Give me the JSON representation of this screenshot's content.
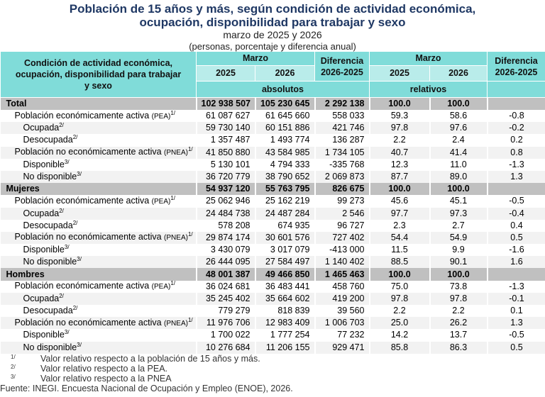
{
  "title": {
    "line1": "Población de 15 años y más, según condición de actividad económica,",
    "line2": "ocupación, disponibilidad para trabajar y sexo",
    "subtitle": "marzo de 2025 y 2026",
    "units": "(personas, porcentaje y diferencia anual)"
  },
  "header": {
    "label": "Condición de actividad económica, ocupación, disponibilidad para trabajar y sexo",
    "month": "Marzo",
    "y2025": "2025",
    "y2026": "2026",
    "diff": "Diferencia 2026-2025",
    "absolutos": "absolutos",
    "relativos": "relativos"
  },
  "rows": [
    {
      "type": "grp",
      "label": "Total",
      "v": [
        "102 938 507",
        "105 230 645",
        "2 292 138",
        "100.0",
        "100.0",
        ""
      ]
    },
    {
      "type": "l1",
      "label": "Población económicamente activa ",
      "abbr": "(PEA)",
      "sup": "1/",
      "v": [
        "61 087 627",
        "61 645 660",
        "558 033",
        "59.3",
        "58.6",
        "-0.8"
      ]
    },
    {
      "type": "l2",
      "label": "Ocupada",
      "sup": "2/",
      "v": [
        "59 730 140",
        "60 151 886",
        "421 746",
        "97.8",
        "97.6",
        "-0.2"
      ]
    },
    {
      "type": "l2",
      "label": "Desocupada",
      "sup": "2/",
      "v": [
        "1 357 487",
        "1 493 774",
        "136 287",
        "2.2",
        "2.4",
        "0.2"
      ]
    },
    {
      "type": "l1",
      "label": "Población no económicamente activa ",
      "abbr": "(PNEA)",
      "sup": "1/",
      "v": [
        "41 850 880",
        "43 584 985",
        "1 734 105",
        "40.7",
        "41.4",
        "0.8"
      ]
    },
    {
      "type": "l2",
      "label": "Disponible",
      "sup": "3/",
      "v": [
        "5 130 101",
        "4 794 333",
        "-335 768",
        "12.3",
        "11.0",
        "-1.3"
      ]
    },
    {
      "type": "l2",
      "label": "No disponible",
      "sup": "3/",
      "v": [
        "36 720 779",
        "38 790 652",
        "2 069 873",
        "87.7",
        "89.0",
        "1.3"
      ]
    },
    {
      "type": "grp",
      "label": "Mujeres",
      "v": [
        "54 937 120",
        "55 763 795",
        "826 675",
        "100.0",
        "100.0",
        ""
      ]
    },
    {
      "type": "l1",
      "label": "Población económicamente activa ",
      "abbr": "(PEA)",
      "sup": "1/",
      "v": [
        "25 062 946",
        "25 162 219",
        "99 273",
        "45.6",
        "45.1",
        "-0.5"
      ]
    },
    {
      "type": "l2",
      "label": "Ocupada",
      "sup": "2/",
      "v": [
        "24 484 738",
        "24 487 284",
        "2 546",
        "97.7",
        "97.3",
        "-0.4"
      ]
    },
    {
      "type": "l2",
      "label": "Desocupada",
      "sup": "2/",
      "v": [
        "578 208",
        "674 935",
        "96 727",
        "2.3",
        "2.7",
        "0.4"
      ]
    },
    {
      "type": "l1",
      "label": "Población no económicamente activa ",
      "abbr": "(PNEA)",
      "sup": "1/",
      "v": [
        "29 874 174",
        "30 601 576",
        "727 402",
        "54.4",
        "54.9",
        "0.5"
      ]
    },
    {
      "type": "l2",
      "label": "Disponible",
      "sup": "3/",
      "v": [
        "3 430 079",
        "3 017 079",
        "-413 000",
        "11.5",
        "9.9",
        "-1.6"
      ]
    },
    {
      "type": "l2",
      "label": "No disponible",
      "sup": "3/",
      "v": [
        "26 444 095",
        "27 584 497",
        "1 140 402",
        "88.5",
        "90.1",
        "1.6"
      ]
    },
    {
      "type": "grp",
      "label": "Hombres",
      "v": [
        "48 001 387",
        "49 466 850",
        "1 465 463",
        "100.0",
        "100.0",
        ""
      ]
    },
    {
      "type": "l1",
      "label": "Población económicamente activa ",
      "abbr": "(PEA)",
      "sup": "1/",
      "v": [
        "36 024 681",
        "36 483 441",
        "458 760",
        "75.0",
        "73.8",
        "-1.3"
      ]
    },
    {
      "type": "l2",
      "label": "Ocupada",
      "sup": "2/",
      "v": [
        "35 245 402",
        "35 664 602",
        "419 200",
        "97.8",
        "97.8",
        "-0.1"
      ]
    },
    {
      "type": "l2",
      "label": "Desocupada",
      "sup": "2/",
      "v": [
        "779 279",
        "818 839",
        "39 560",
        "2.2",
        "2.2",
        "0.1"
      ]
    },
    {
      "type": "l1",
      "label": "Población no económicamente activa ",
      "abbr": "(PNEA)",
      "sup": "1/",
      "v": [
        "11 976 706",
        "12 983 409",
        "1 006 703",
        "25.0",
        "26.2",
        "1.3"
      ]
    },
    {
      "type": "l2",
      "label": "Disponible",
      "sup": "3/",
      "v": [
        "1 700 022",
        "1 777 254",
        "77 232",
        "14.2",
        "13.7",
        "-0.5"
      ]
    },
    {
      "type": "l2",
      "label": "No disponible",
      "sup": "3/",
      "v": [
        "10 276 684",
        "11 206 155",
        "929 471",
        "85.8",
        "86.3",
        "0.5"
      ]
    }
  ],
  "footnotes": [
    {
      "n": "1/",
      "text": "Valor relativo respecto a la población de 15 años y más."
    },
    {
      "n": "2/",
      "text": "Valor relativo respecto a la PEA."
    },
    {
      "n": "3/",
      "text": "Valor relativo respecto a la PNEA"
    }
  ],
  "source": "Fuente: INEGI. Encuesta Nacional de Ocupación y Empleo (ENOE), 2026."
}
